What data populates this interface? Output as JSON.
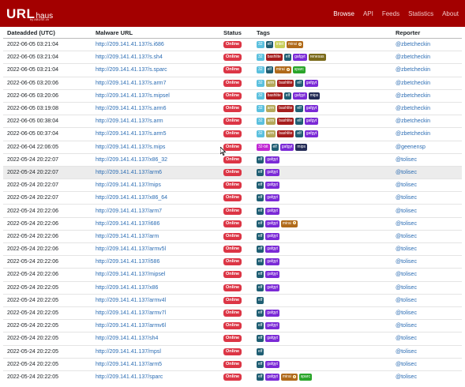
{
  "nav": {
    "brand_main": "URL",
    "brand_sub": "haus",
    "brand_tag": "by ABUSE.ch",
    "links": [
      "Browse",
      "API",
      "Feeds",
      "Statistics",
      "About"
    ]
  },
  "table": {
    "headers": [
      "Dateadded (UTC)",
      "Malware URL",
      "Status",
      "Tags",
      "Reporter"
    ],
    "rows": [
      {
        "date": "2022-06-05 03:21:04",
        "url": "http://209.141.41.137/s.i686",
        "status": "Online",
        "tags": [
          "32",
          "elf",
          "intel",
          "mirai"
        ],
        "reporter": "@zbetcheckin"
      },
      {
        "date": "2022-06-05 03:21:04",
        "url": "http://209.141.41.137/s.sh4",
        "status": "Online",
        "tags": [
          "32",
          "bashlite",
          "elf",
          "gafgyt",
          "renesas"
        ],
        "reporter": "@zbetcheckin"
      },
      {
        "date": "2022-06-05 03:21:04",
        "url": "http://209.141.41.137/s.sparc",
        "status": "Online",
        "tags": [
          "32",
          "elf",
          "mirai",
          "sparc"
        ],
        "reporter": "@zbetcheckin"
      },
      {
        "date": "2022-06-05 03:20:06",
        "url": "http://209.141.41.137/s.arm7",
        "status": "Online",
        "tags": [
          "32",
          "arm",
          "bashlite",
          "elf",
          "gafgyt"
        ],
        "reporter": "@zbetcheckin"
      },
      {
        "date": "2022-06-05 03:20:06",
        "url": "http://209.141.41.137/s.mipsel",
        "status": "Online",
        "tags": [
          "32",
          "bashlite",
          "elf",
          "gafgyt",
          "mips"
        ],
        "reporter": "@zbetcheckin"
      },
      {
        "date": "2022-06-05 03:19:08",
        "url": "http://209.141.41.137/s.arm6",
        "status": "Online",
        "tags": [
          "32",
          "arm",
          "bashlite",
          "elf",
          "gafgyt"
        ],
        "reporter": "@zbetcheckin"
      },
      {
        "date": "2022-06-05 00:38:04",
        "url": "http://209.141.41.137/s.arm",
        "status": "Online",
        "tags": [
          "32",
          "arm",
          "bashlite",
          "elf",
          "gafgyt"
        ],
        "reporter": "@zbetcheckin"
      },
      {
        "date": "2022-06-05 00:37:04",
        "url": "http://209.141.41.137/s.arm5",
        "status": "Online",
        "tags": [
          "32",
          "arm",
          "bashlite",
          "elf",
          "gafgyt"
        ],
        "reporter": "@zbetcheckin"
      },
      {
        "date": "2022-06-04 22:06:05",
        "url": "http://209.141.41.137/s.mips",
        "status": "Online",
        "tags": [
          "32-bit",
          "elf",
          "gafgyt",
          "mips"
        ],
        "reporter": "@geenensp"
      },
      {
        "date": "2022-05-24 20:22:07",
        "url": "http://209.141.41.137/x86_32",
        "status": "Online",
        "tags": [
          "elf",
          "gafgyt"
        ],
        "reporter": "@tolisec"
      },
      {
        "date": "2022-05-24 20:22:07",
        "url": "http://209.141.41.137/arm6",
        "status": "Online",
        "tags": [
          "elf",
          "gafgyt"
        ],
        "reporter": "@tolisec"
      },
      {
        "date": "2022-05-24 20:22:07",
        "url": "http://209.141.41.137/mips",
        "status": "Online",
        "tags": [
          "elf",
          "gafgyt"
        ],
        "reporter": "@tolisec"
      },
      {
        "date": "2022-05-24 20:22:07",
        "url": "http://209.141.41.137/x86_64",
        "status": "Online",
        "tags": [
          "elf",
          "gafgyt"
        ],
        "reporter": "@tolisec"
      },
      {
        "date": "2022-05-24 20:22:06",
        "url": "http://209.141.41.137/arm7",
        "status": "Online",
        "tags": [
          "elf",
          "gafgyt"
        ],
        "reporter": "@tolisec"
      },
      {
        "date": "2022-05-24 20:22:06",
        "url": "http://209.141.41.137/i686",
        "status": "Online",
        "tags": [
          "elf",
          "gafgyt",
          "mirai"
        ],
        "reporter": "@tolisec"
      },
      {
        "date": "2022-05-24 20:22:06",
        "url": "http://209.141.41.137/arm",
        "status": "Online",
        "tags": [
          "elf",
          "gafgyt"
        ],
        "reporter": "@tolisec"
      },
      {
        "date": "2022-05-24 20:22:06",
        "url": "http://209.141.41.137/armv5l",
        "status": "Online",
        "tags": [
          "elf",
          "gafgyt"
        ],
        "reporter": "@tolisec"
      },
      {
        "date": "2022-05-24 20:22:06",
        "url": "http://209.141.41.137/i586",
        "status": "Online",
        "tags": [
          "elf",
          "gafgyt"
        ],
        "reporter": "@tolisec"
      },
      {
        "date": "2022-05-24 20:22:06",
        "url": "http://209.141.41.137/mipsel",
        "status": "Online",
        "tags": [
          "elf",
          "gafgyt"
        ],
        "reporter": "@tolisec"
      },
      {
        "date": "2022-05-24 20:22:05",
        "url": "http://209.141.41.137/x86",
        "status": "Online",
        "tags": [
          "elf",
          "gafgyt"
        ],
        "reporter": "@tolisec"
      },
      {
        "date": "2022-05-24 20:22:05",
        "url": "http://209.141.41.137/armv4l",
        "status": "Online",
        "tags": [
          "elf"
        ],
        "reporter": "@tolisec"
      },
      {
        "date": "2022-05-24 20:22:05",
        "url": "http://209.141.41.137/armv7l",
        "status": "Online",
        "tags": [
          "elf",
          "gafgyt"
        ],
        "reporter": "@tolisec"
      },
      {
        "date": "2022-05-24 20:22:05",
        "url": "http://209.141.41.137/armv6l",
        "status": "Online",
        "tags": [
          "elf",
          "gafgyt"
        ],
        "reporter": "@tolisec"
      },
      {
        "date": "2022-05-24 20:22:05",
        "url": "http://209.141.41.137/sh4",
        "status": "Online",
        "tags": [
          "elf",
          "gafgyt"
        ],
        "reporter": "@tolisec"
      },
      {
        "date": "2022-05-24 20:22:05",
        "url": "http://209.141.41.137/mpsl",
        "status": "Online",
        "tags": [
          "elf"
        ],
        "reporter": "@tolisec"
      },
      {
        "date": "2022-05-24 20:22:05",
        "url": "http://209.141.41.137/arm5",
        "status": "Online",
        "tags": [
          "elf",
          "gafgyt"
        ],
        "reporter": "@tolisec"
      },
      {
        "date": "2022-05-24 20:22:05",
        "url": "http://209.141.41.137/sparc",
        "status": "Online",
        "tags": [
          "elf",
          "gafgyt",
          "mirai",
          "sparc"
        ],
        "reporter": "@tolisec"
      }
    ]
  },
  "tag_colors": {
    "32": "#5bc0de",
    "32-bit": "#c026d3",
    "elf": "#1f5e73",
    "intel": "#c9cf5a",
    "mirai": "#b06a1a",
    "bashlite": "#a51c1c",
    "gafgyt": "#7b2ad6",
    "renesas": "#7a6a1a",
    "sparc": "#2aa52a",
    "arm": "#b5a85a",
    "mips": "#222a55"
  },
  "tag_icons": {
    "mirai": "malware-icon"
  },
  "highlighted_row": 10
}
